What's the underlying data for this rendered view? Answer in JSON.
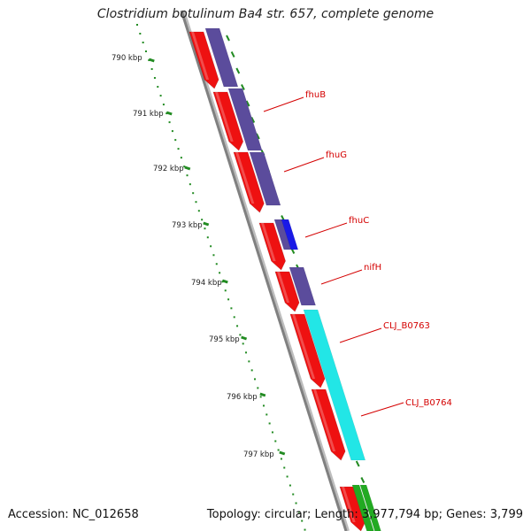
{
  "title": "Clostridium botulinum Ba4 str. 657, complete genome",
  "footer": {
    "accession_text": "Accession: NC_012658",
    "summary_text": "Topology: circular; Length: 3,977,794 bp; Genes: 3,799"
  },
  "ruler": {
    "labels": [
      "790 kbp",
      "791 kbp",
      "792 kbp",
      "793 kbp",
      "794 kbp",
      "795 kbp",
      "796 kbp",
      "797 kbp"
    ]
  },
  "gene_labels": [
    "fhuB",
    "fhuG",
    "fhuC",
    "nifH",
    "CLJ_B0763",
    "CLJ_B0764"
  ],
  "colors": {
    "backbone": "#808080",
    "cds_forward": "#ee1111",
    "gene_purple": "#5b4c9c",
    "gene_blue": "#1a1ae6",
    "gene_cyan": "#22e6e6",
    "gene_green": "#22aa22",
    "tick": "#228b22",
    "label": "#d40000"
  }
}
